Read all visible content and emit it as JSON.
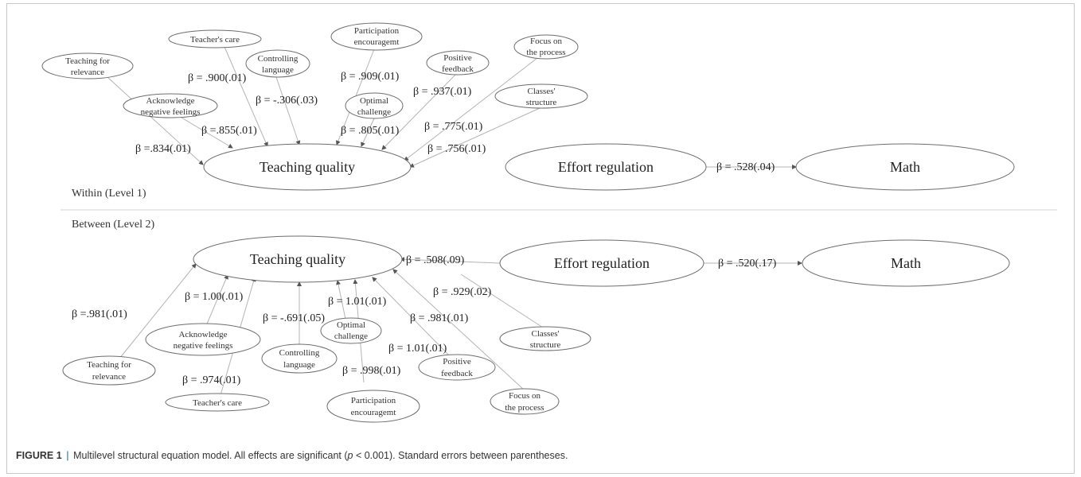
{
  "figure": {
    "within_label": "Within (Level 1)",
    "between_label": "Between (Level 2)",
    "caption": {
      "label": "FIGURE 1",
      "separator": "|",
      "text_before": "Multilevel structural equation model. All effects are significant (",
      "p_symbol": "p",
      "text_after": " < 0.001). Standard errors between parentheses."
    }
  },
  "within": {
    "nodes": {
      "teaching_for_relevance": [
        "Teaching for",
        "relevance"
      ],
      "teachers_care": [
        "Teacher's care"
      ],
      "controlling_language": [
        "Controlling",
        "language"
      ],
      "participation": [
        "Participation",
        "encouragemt"
      ],
      "positive_feedback": [
        "Positive",
        "feedback"
      ],
      "focus_process": [
        "Focus on",
        "the process"
      ],
      "acknowledge": [
        "Acknowledge",
        "negative feelings"
      ],
      "optimal_challenge": [
        "Optimal",
        "challenge"
      ],
      "classes_structure": [
        "Classes'",
        "structure"
      ],
      "teaching_quality": "Teaching quality",
      "effort_regulation": "Effort regulation",
      "math": "Math"
    },
    "betas": {
      "teachers_care": "β = .900(.01)",
      "controlling_language": "β = -.306(.03)",
      "participation": "β = .909(.01)",
      "positive_feedback": "β = .937(.01)",
      "acknowledge": "β =.855(.01)",
      "optimal_challenge": "β = .805(.01)",
      "focus_process": "β = .775(.01)",
      "teaching_for_relevance": "β =.834(.01)",
      "classes_structure": "β = .756(.01)",
      "effort_math": "β = .528(.04)"
    }
  },
  "between": {
    "nodes": {
      "teaching_quality": "Teaching quality",
      "effort_regulation": "Effort regulation",
      "math": "Math",
      "acknowledge": [
        "Acknowledge",
        "negative feelings"
      ],
      "optimal_challenge": [
        "Optimal",
        "challenge"
      ],
      "classes_structure": [
        "Classes'",
        "structure"
      ],
      "teaching_for_relevance": [
        "Teaching for",
        "relevance"
      ],
      "controlling_language": [
        "Controlling",
        "language"
      ],
      "positive_feedback": [
        "Positive",
        "feedback"
      ],
      "focus_process": [
        "Focus on",
        "the process"
      ],
      "teachers_care": [
        "Teacher's care"
      ],
      "participation": [
        "Participation",
        "encouragemt"
      ]
    },
    "betas": {
      "effort_teaching": "β = .508(.09)",
      "effort_math": "β = .520(.17)",
      "classes_structure": "β = .929(.02)",
      "acknowledge": "β = 1.00(.01)",
      "teaching_for_relevance": "β =.981(.01)",
      "optimal_challenge": "β = 1.01(.01)",
      "controlling_language": "β = -.691(.05)",
      "focus_process": "β = .981(.01)",
      "positive_feedback": "β = 1.01(.01)",
      "teachers_care": "β = .974(.01)",
      "participation": "β = .998(.01)"
    }
  }
}
